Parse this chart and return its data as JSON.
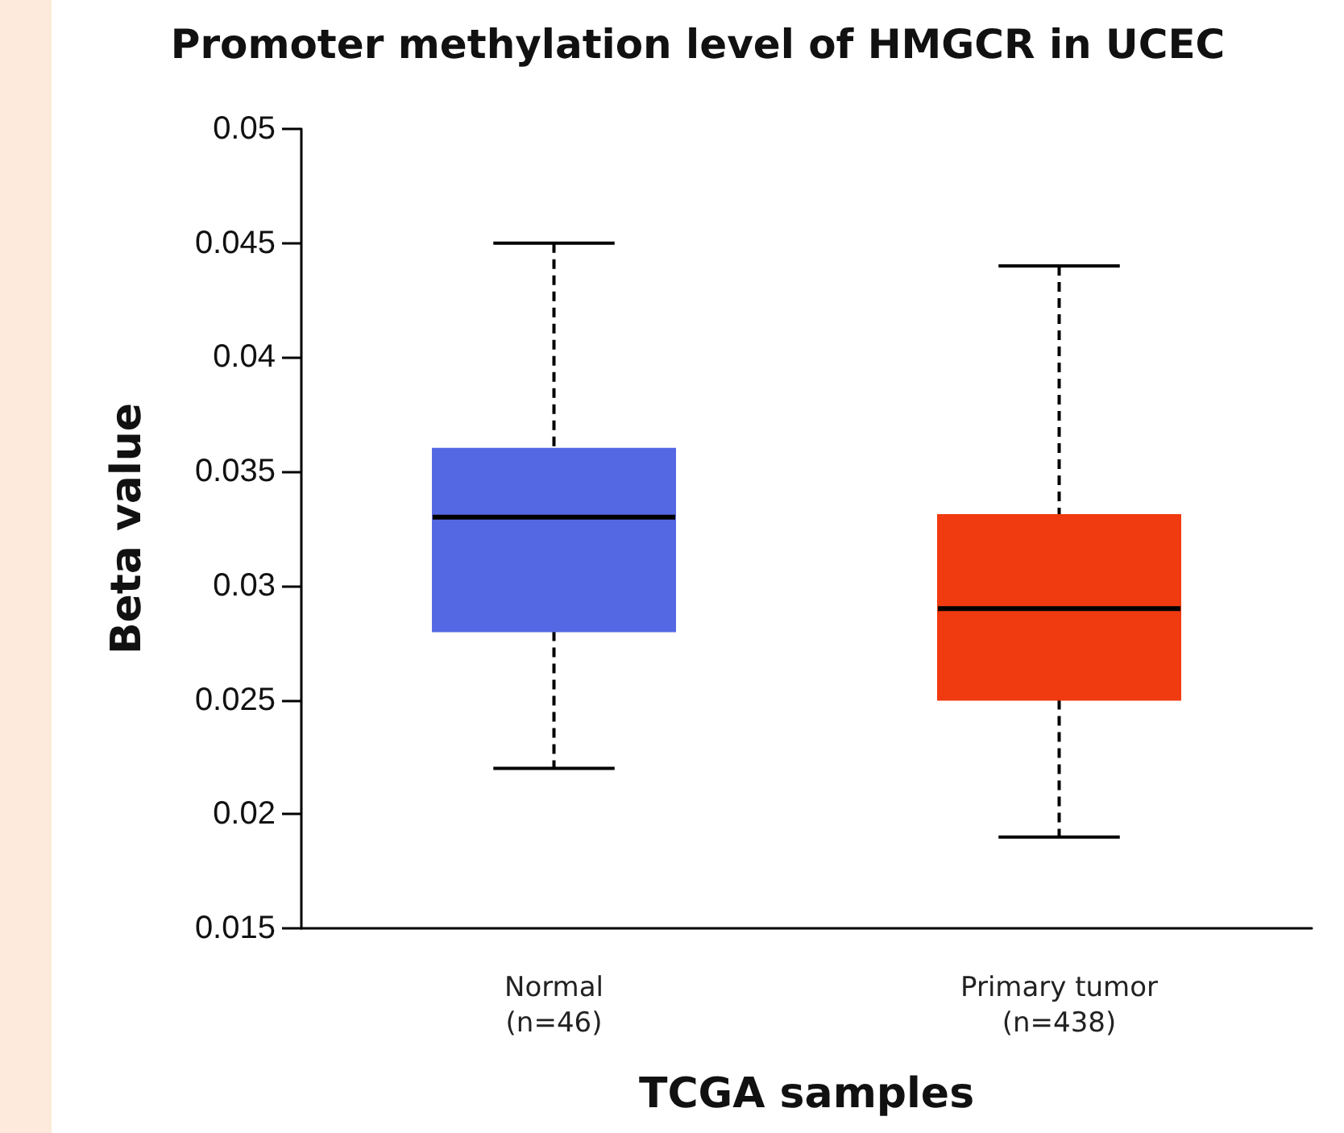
{
  "chart_data": {
    "type": "box",
    "title": "Promoter methylation level of HMGCR in UCEC",
    "xlabel": "TCGA samples",
    "ylabel": "Beta value",
    "categories": [
      "Normal\n(n=46)",
      "Primary tumor\n(n=438)"
    ],
    "boxes": [
      {
        "low": 0.022,
        "q1": 0.028,
        "median": 0.033,
        "q3": 0.036,
        "high": 0.045
      },
      {
        "low": 0.019,
        "q1": 0.025,
        "median": 0.029,
        "q3": 0.0331,
        "high": 0.044
      }
    ],
    "colors": [
      "#5568e3",
      "#f03a10"
    ],
    "ylim": [
      0.015,
      0.05
    ],
    "yticks": [
      0.015,
      0.02,
      0.025,
      0.03,
      0.035,
      0.04,
      0.045,
      0.05
    ],
    "line_style": "dashed",
    "grid": false
  }
}
